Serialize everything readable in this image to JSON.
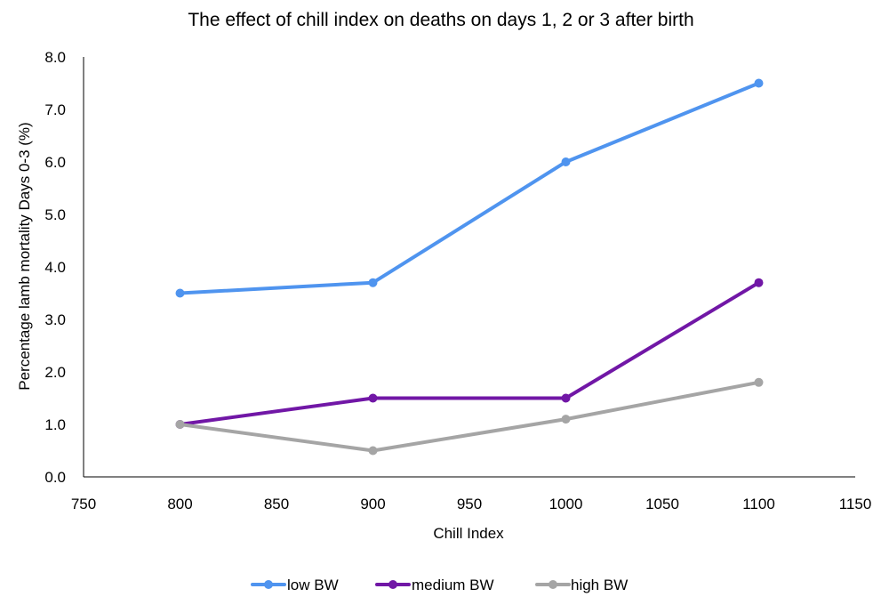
{
  "chart_data": {
    "type": "line",
    "title": "The effect of chill index on deaths on days 1, 2 or 3 after birth",
    "xlabel": "Chill Index",
    "ylabel": "Percentage lamb mortality Days 0-3 (%)",
    "xlim": [
      750,
      1150
    ],
    "ylim": [
      0,
      8
    ],
    "xticks": [
      "750",
      "800",
      "850",
      "900",
      "950",
      "1000",
      "1050",
      "1100",
      "1150"
    ],
    "yticks": [
      "0.0",
      "1.0",
      "2.0",
      "3.0",
      "4.0",
      "5.0",
      "6.0",
      "7.0",
      "8.0"
    ],
    "grid": false,
    "legend_position": "bottom",
    "x": [
      800,
      900,
      1000,
      1100
    ],
    "series": [
      {
        "name": "low BW",
        "color": "#4f94ef",
        "values": [
          3.5,
          3.7,
          6.0,
          7.5
        ]
      },
      {
        "name": "medium BW",
        "color": "#7117a6",
        "values": [
          1.0,
          1.5,
          1.5,
          3.7
        ]
      },
      {
        "name": "high BW",
        "color": "#a5a5a5",
        "values": [
          1.0,
          0.5,
          1.1,
          1.8
        ]
      }
    ]
  }
}
